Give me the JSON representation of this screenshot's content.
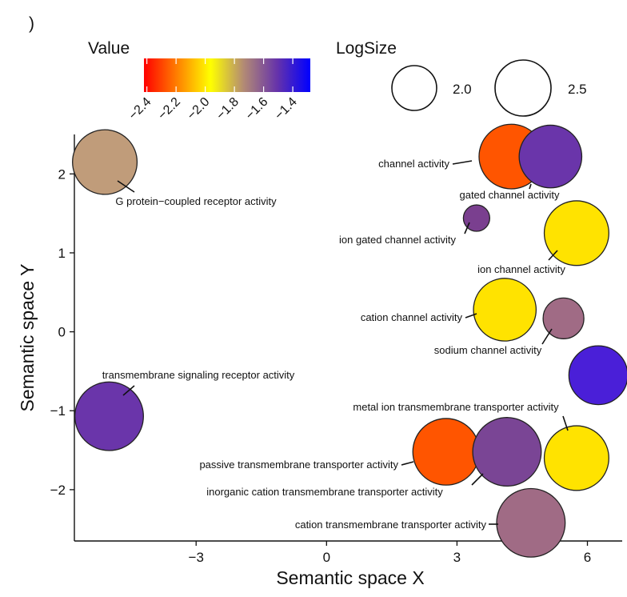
{
  "panel_letter": ")",
  "chart_data": {
    "type": "scatter",
    "xlabel": "Semantic space X",
    "ylabel": "Semantic space Y",
    "xlim": [
      -5.8,
      6.8
    ],
    "ylim": [
      -2.65,
      2.5
    ],
    "xticks": [
      -3,
      0,
      3,
      6
    ],
    "yticks": [
      -2,
      -1,
      0,
      1,
      2
    ],
    "color_legend": {
      "title": "Value",
      "min": -2.42,
      "max": -1.28,
      "ticks": [
        -2.4,
        -2.2,
        -2.0,
        -1.8,
        -1.6,
        -1.4
      ],
      "tick_labels": [
        "−2.4",
        "−2.2",
        "−2.0",
        "−1.8",
        "−1.6",
        "−1.4"
      ],
      "stops": [
        "#ff0000",
        "#ff8000",
        "#ffff00",
        "#b28a75",
        "#6633aa",
        "#0000ff"
      ]
    },
    "size_legend": {
      "title": "LogSize",
      "values": [
        2.0,
        2.5
      ],
      "labels": [
        "2.0",
        "2.5"
      ]
    },
    "points": [
      {
        "name": "G protein−coupled receptor activity",
        "x": -5.1,
        "y": 2.15,
        "value": -1.85,
        "color": "#c09c7a",
        "logsize": 2.35
      },
      {
        "name": "channel activity",
        "x": 4.25,
        "y": 2.22,
        "value": -2.3,
        "color": "#ff5500",
        "logsize": 2.35
      },
      {
        "name": "gated channel activity",
        "x": 5.15,
        "y": 2.22,
        "value": -1.65,
        "color": "#6a35aa",
        "logsize": 2.3
      },
      {
        "name": "ion gated channel activity",
        "x": 3.45,
        "y": 1.44,
        "value": -1.72,
        "color": "#7a3f8f",
        "logsize": 1.25
      },
      {
        "name": "ion channel activity",
        "x": 5.75,
        "y": 1.25,
        "value": -2.05,
        "color": "#ffe300",
        "logsize": 2.35
      },
      {
        "name": "cation channel activity",
        "x": 4.1,
        "y": 0.28,
        "value": -2.05,
        "color": "#ffe300",
        "logsize": 2.3
      },
      {
        "name": "sodium channel activity",
        "x": 5.45,
        "y": 0.17,
        "value": -1.82,
        "color": "#a06b85",
        "logsize": 1.7
      },
      {
        "name": "",
        "x": 6.25,
        "y": -0.55,
        "value": -1.4,
        "color": "#4a1fd8",
        "logsize": 2.2
      },
      {
        "name": "transmembrane signaling receptor activity",
        "x": -5.0,
        "y": -1.07,
        "value": -1.65,
        "color": "#6a35aa",
        "logsize": 2.45
      },
      {
        "name": "metal ion transmembrane transporter activity",
        "x": 5.75,
        "y": -1.6,
        "value": -2.05,
        "color": "#ffe300",
        "logsize": 2.35
      },
      {
        "name": "passive transmembrane transporter activity",
        "x": 2.75,
        "y": -1.52,
        "value": -2.3,
        "color": "#ff5500",
        "logsize": 2.4
      },
      {
        "name": "inorganic cation transmembrane transporter activity",
        "x": 4.15,
        "y": -1.52,
        "value": -1.7,
        "color": "#7a4595",
        "logsize": 2.45
      },
      {
        "name": "cation transmembrane transporter activity",
        "x": 4.7,
        "y": -2.42,
        "value": -1.8,
        "color": "#a06b85",
        "logsize": 2.45
      }
    ]
  }
}
